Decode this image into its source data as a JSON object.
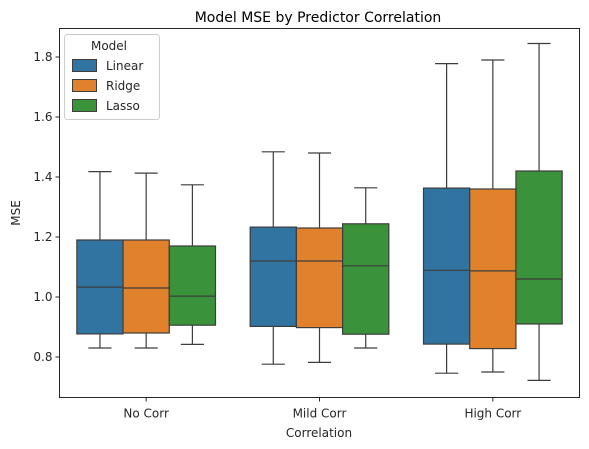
{
  "chart_data": {
    "type": "boxplot",
    "title": "Model MSE by Predictor Correlation",
    "xlabel": "Correlation",
    "ylabel": "MSE",
    "categories": [
      "No Corr",
      "Mild Corr",
      "High Corr"
    ],
    "ylim": [
      0.665,
      1.895
    ],
    "yticks": [
      0.8,
      1.0,
      1.2,
      1.4,
      1.6,
      1.8
    ],
    "ytick_labels": [
      "0.8",
      "1.0",
      "1.2",
      "1.4",
      "1.6",
      "1.8"
    ],
    "grid": false,
    "legend": {
      "title": "Model",
      "position": "top-left"
    },
    "series": [
      {
        "name": "Linear",
        "color": "#3274a1",
        "boxes": [
          {
            "whislo": 0.83,
            "q1": 0.877,
            "med": 1.033,
            "q3": 1.19,
            "whishi": 1.418
          },
          {
            "whislo": 0.776,
            "q1": 0.902,
            "med": 1.12,
            "q3": 1.233,
            "whishi": 1.484
          },
          {
            "whislo": 0.746,
            "q1": 0.843,
            "med": 1.089,
            "q3": 1.363,
            "whishi": 1.778
          }
        ]
      },
      {
        "name": "Ridge",
        "color": "#e1812c",
        "boxes": [
          {
            "whislo": 0.83,
            "q1": 0.88,
            "med": 1.03,
            "q3": 1.19,
            "whishi": 1.413
          },
          {
            "whislo": 0.782,
            "q1": 0.898,
            "med": 1.12,
            "q3": 1.23,
            "whishi": 1.48
          },
          {
            "whislo": 0.75,
            "q1": 0.828,
            "med": 1.087,
            "q3": 1.36,
            "whishi": 1.79
          }
        ]
      },
      {
        "name": "Lasso",
        "color": "#3a923a",
        "boxes": [
          {
            "whislo": 0.842,
            "q1": 0.906,
            "med": 1.003,
            "q3": 1.17,
            "whishi": 1.374
          },
          {
            "whislo": 0.83,
            "q1": 0.876,
            "med": 1.104,
            "q3": 1.244,
            "whishi": 1.364
          },
          {
            "whislo": 0.722,
            "q1": 0.91,
            "med": 1.06,
            "q3": 1.42,
            "whishi": 1.845
          }
        ]
      }
    ]
  }
}
